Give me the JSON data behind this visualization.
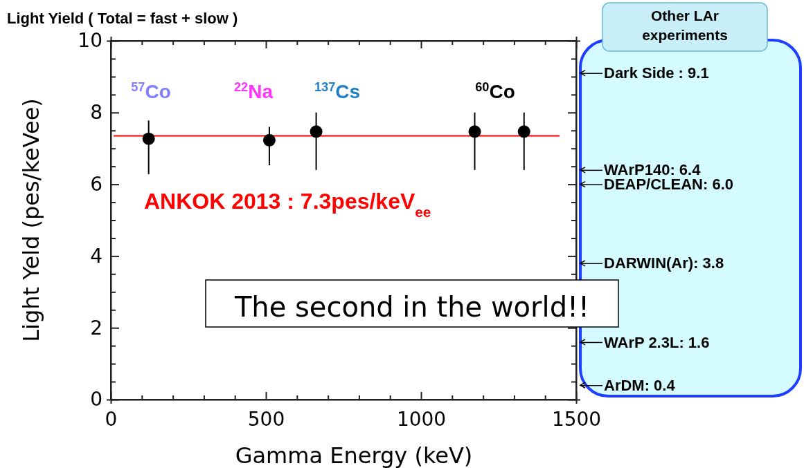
{
  "chart_data": {
    "type": "scatter",
    "title": "Light Yield ( Total = fast + slow )",
    "xlabel": "Gamma Energy (keV)",
    "ylabel": "Light Yeld  (pes/keVee)",
    "x": [
      122,
      511,
      662,
      1173,
      1332
    ],
    "series": [
      {
        "color": "#000000",
        "values": [
          7.27,
          7.23,
          7.47,
          7.47,
          7.47
        ],
        "errors": [
          [
            6.28,
            7.78
          ],
          [
            6.53,
            7.6
          ],
          [
            6.4,
            8.0
          ],
          [
            6.4,
            8.0
          ],
          [
            6.4,
            8.0
          ]
        ]
      }
    ],
    "marker": "circle",
    "grid": false,
    "xlim": [
      0,
      1500
    ],
    "ylim": [
      0,
      10
    ],
    "xticks": [
      0,
      {
        "value": 100,
        "label": null
      },
      {
        "value": 200,
        "label": null
      },
      {
        "value": 300,
        "label": null
      },
      {
        "value": 400,
        "label": null
      },
      500,
      {
        "value": 600,
        "label": null
      },
      {
        "value": 700,
        "label": null
      },
      {
        "value": 800,
        "label": null
      },
      {
        "value": 900,
        "label": null
      },
      1000,
      {
        "value": 1100,
        "label": null
      },
      {
        "value": 1200,
        "label": null
      },
      {
        "value": 1300,
        "label": null
      },
      {
        "value": 1400,
        "label": null
      },
      1500
    ],
    "yticks": [
      0,
      {
        "value": 0.5,
        "label": null
      },
      {
        "value": 1,
        "label": null
      },
      {
        "value": 1.5,
        "label": null
      },
      2,
      {
        "value": 2.5,
        "label": null
      },
      {
        "value": 3,
        "label": null
      },
      {
        "value": 3.5,
        "label": null
      },
      4,
      {
        "value": 4.5,
        "label": null
      },
      {
        "value": 5,
        "label": null
      },
      {
        "value": 5.5,
        "label": null
      },
      6,
      {
        "value": 6.5,
        "label": null
      },
      {
        "value": 7,
        "label": null
      },
      {
        "value": 7.5,
        "label": null
      },
      8,
      {
        "value": 8.5,
        "label": null
      },
      {
        "value": 9,
        "label": null
      },
      {
        "value": 9.5,
        "label": null
      },
      10
    ],
    "y2lim": [
      0,
      10
    ],
    "y2ticks": [
      {
        "value": 9.1,
        "label": "Dark Side : 9.1"
      },
      {
        "value": 6.4,
        "label": "WArP140: 6.4"
      },
      {
        "value": 6.0,
        "label": "DEAP/CLEAN: 6.0"
      },
      {
        "value": 3.8,
        "label": "DARWIN(Ar): 3.8"
      },
      {
        "value": 1.6,
        "label": "WArP 2.3L: 1.6"
      },
      {
        "value": 0.4,
        "label": "ArDM: 0.4"
      }
    ],
    "ref_lines": [
      {
        "axis": "y",
        "value": 7.35,
        "label": "ANKOK 2013 : 7.3pes/keV$_{ee}$",
        "color": "#ff0000"
      }
    ],
    "annotations": [
      "$^{57}$Co",
      "$^{22}$Na",
      "$^{137}$Cs",
      "$^{60}$Co",
      "The second in the world!!",
      "Other LAr experiments"
    ]
  }
}
